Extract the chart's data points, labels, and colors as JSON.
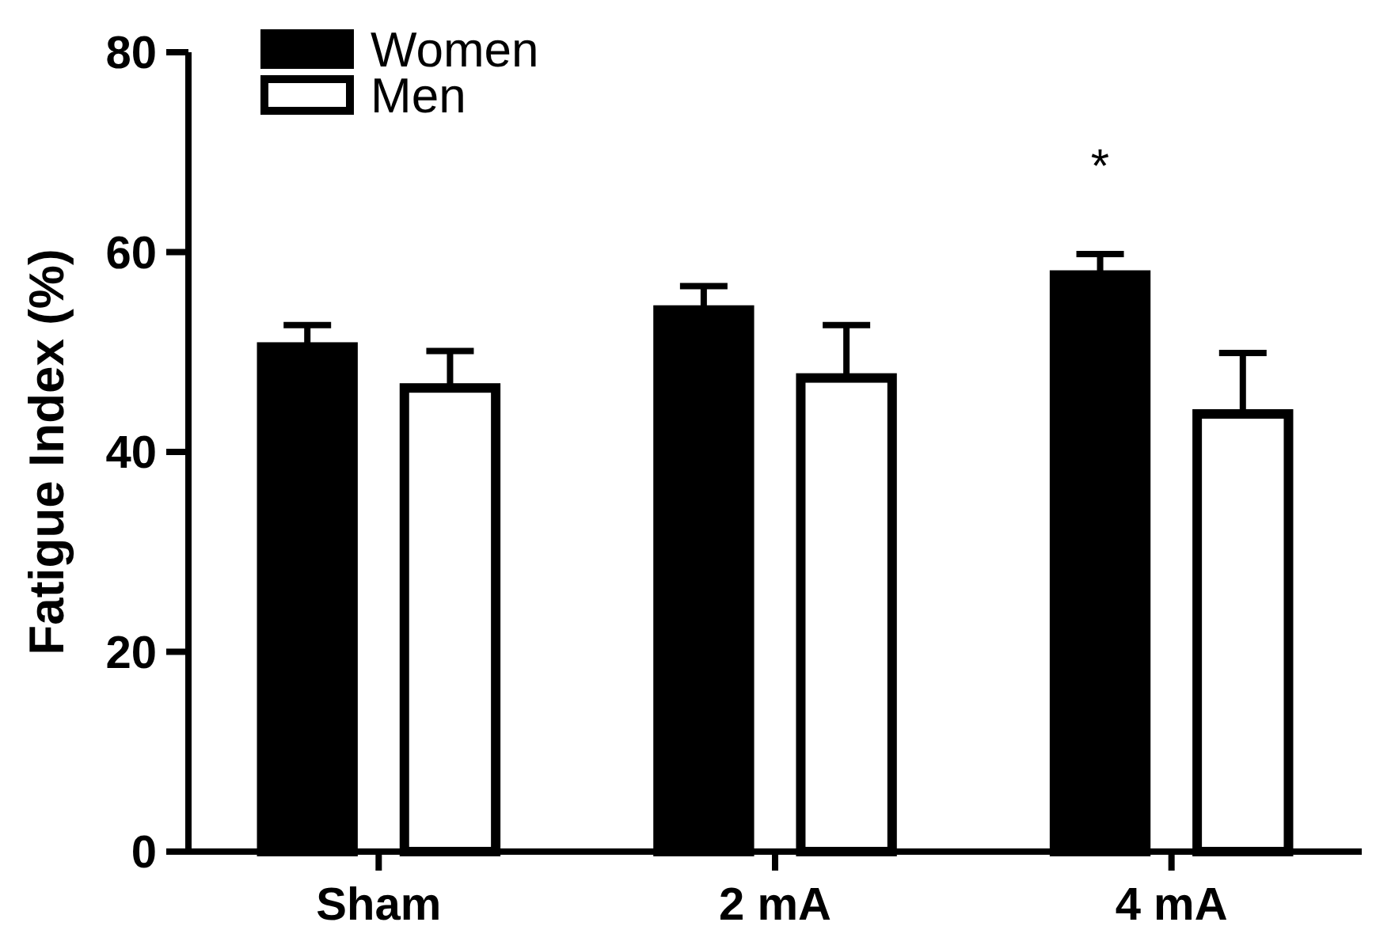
{
  "chart_data": {
    "type": "bar",
    "ylabel": "Fatigue Index (%)",
    "categories": [
      "Sham",
      "2 mA",
      "4 mA"
    ],
    "series": [
      {
        "name": "Women",
        "color": "#000000",
        "values": [
          50.5,
          54.2,
          57.7
        ],
        "errors": [
          [
            50.5,
            52.7
          ],
          [
            54.2,
            56.6
          ],
          [
            57.7,
            59.8
          ]
        ]
      },
      {
        "name": "Men",
        "color": "#ffffff",
        "values": [
          46.4,
          47.4,
          43.8
        ],
        "errors": [
          [
            46.4,
            50.1
          ],
          [
            47.4,
            52.7
          ],
          [
            43.8,
            49.9
          ]
        ]
      }
    ],
    "ylim": [
      0,
      80
    ],
    "yticks": [
      0,
      20,
      40,
      60,
      80
    ],
    "grid": false,
    "legend": "top left",
    "annotations": [
      "*"
    ]
  }
}
